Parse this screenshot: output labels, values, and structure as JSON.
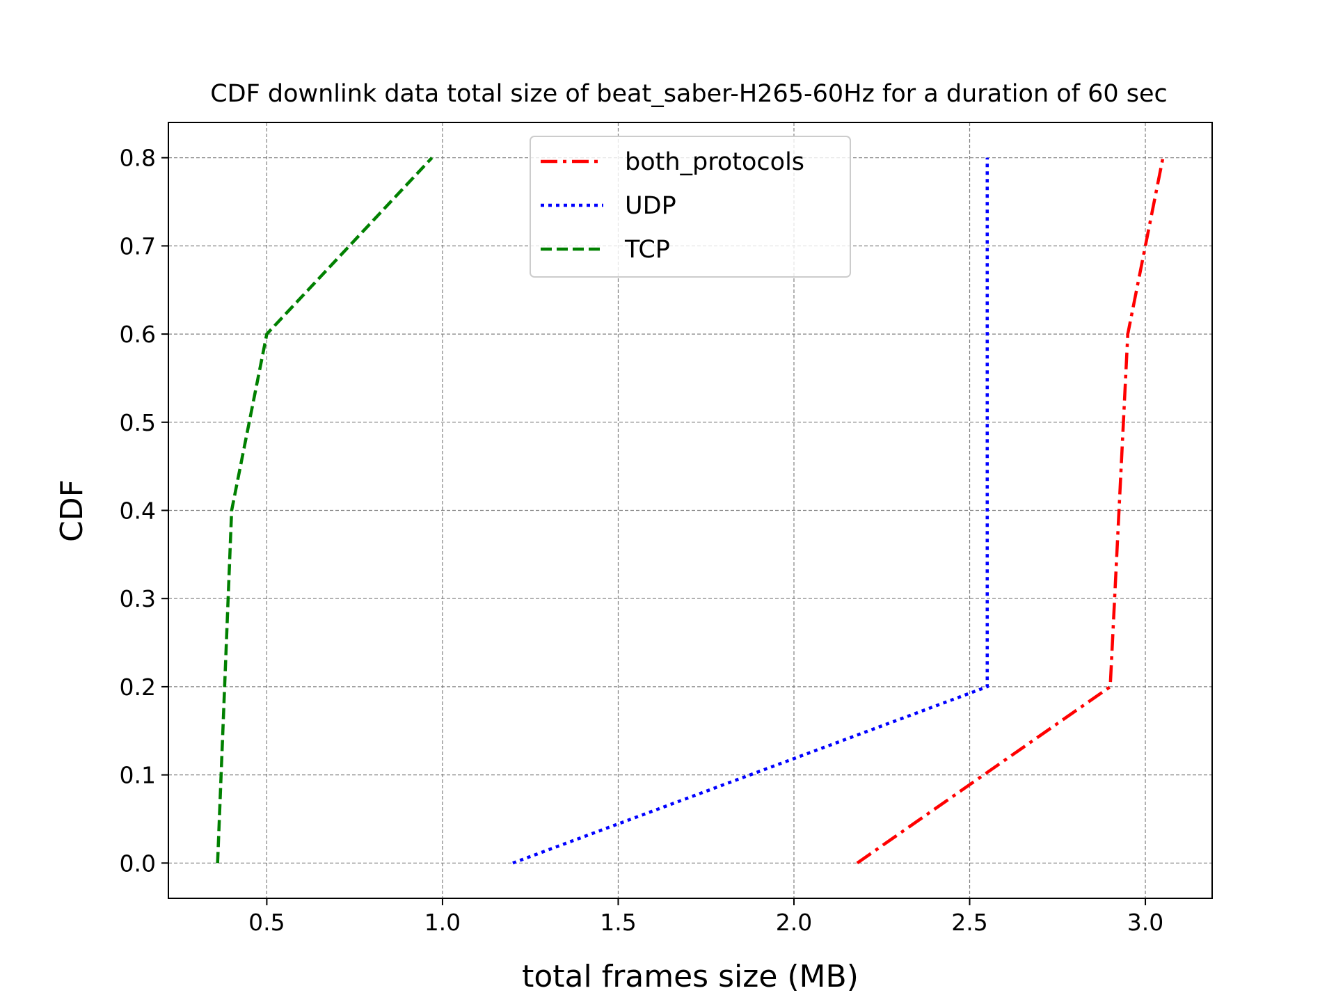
{
  "chart_data": {
    "type": "line",
    "title": "CDF downlink data total size of beat_saber-H265-60Hz for a duration of 60 sec",
    "xlabel": "total frames size (MB)",
    "ylabel": "CDF",
    "xlim": [
      0.22,
      3.19
    ],
    "ylim": [
      -0.04,
      0.84
    ],
    "xticks": [
      0.5,
      1.0,
      1.5,
      2.0,
      2.5,
      3.0
    ],
    "xtick_labels": [
      "0.5",
      "1.0",
      "1.5",
      "2.0",
      "2.5",
      "3.0"
    ],
    "yticks": [
      0.0,
      0.1,
      0.2,
      0.3,
      0.4,
      0.5,
      0.6,
      0.7,
      0.8
    ],
    "ytick_labels": [
      "0.0",
      "0.1",
      "0.2",
      "0.3",
      "0.4",
      "0.5",
      "0.6",
      "0.7",
      "0.8"
    ],
    "grid": true,
    "legend_position": "top-center",
    "series": [
      {
        "name": "both_protocols",
        "color": "#ff0000",
        "style": "dashdot",
        "x": [
          2.18,
          2.9,
          2.95,
          3.05
        ],
        "y": [
          0.0,
          0.2,
          0.6,
          0.8
        ]
      },
      {
        "name": "UDP",
        "color": "#0000ff",
        "style": "dotted",
        "x": [
          1.2,
          2.55,
          2.55,
          2.55
        ],
        "y": [
          0.0,
          0.2,
          0.6,
          0.8
        ]
      },
      {
        "name": "TCP",
        "color": "#008000",
        "style": "dashed",
        "x": [
          0.36,
          0.4,
          0.5,
          0.97
        ],
        "y": [
          0.0,
          0.4,
          0.6,
          0.8
        ]
      }
    ]
  }
}
